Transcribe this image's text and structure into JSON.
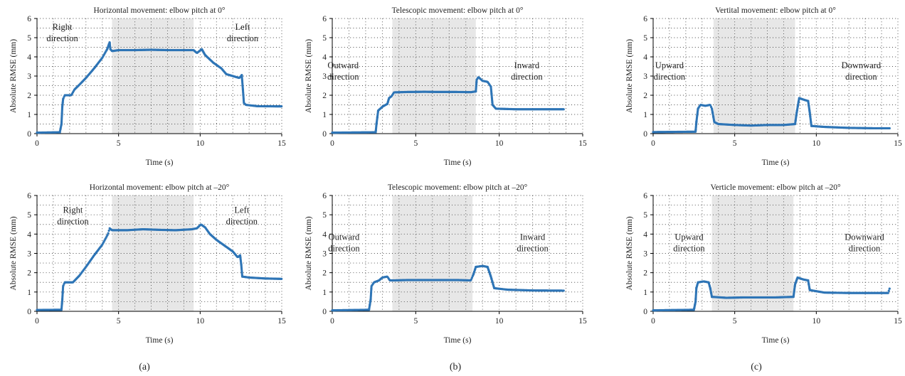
{
  "colors": {
    "series": "#2e75b6",
    "shade": "#e7e7e7",
    "grid": "#4a4a4a",
    "axis": "#000000"
  },
  "sublabels": [
    "(a)",
    "(b)",
    "(c)"
  ],
  "chart_data": [
    {
      "type": "scatter",
      "title": "Horizontal movement: elbow pitch at 0°",
      "xlabel": "Time (s)",
      "ylabel": "Absolute RMSE (mm)",
      "xlim": [
        0,
        15
      ],
      "ylim": [
        0,
        6
      ],
      "xticks": [
        0,
        5,
        10,
        15
      ],
      "yticks": [
        0,
        1,
        2,
        3,
        4,
        5,
        6
      ],
      "grid": true,
      "shaded_interval": [
        4.6,
        9.6
      ],
      "annotations": [
        {
          "lines": [
            "Right",
            "direction"
          ],
          "x": 1.55,
          "y": 5.4
        },
        {
          "lines": [
            "Left",
            "direction"
          ],
          "x": 12.6,
          "y": 5.4
        }
      ],
      "series": [
        {
          "points": [
            [
              0,
              0.05
            ],
            [
              1.4,
              0.07
            ],
            [
              1.5,
              0.5
            ],
            [
              1.55,
              1.4
            ],
            [
              1.6,
              1.8
            ],
            [
              1.7,
              2.0
            ],
            [
              2.1,
              2.0
            ],
            [
              2.3,
              2.3
            ],
            [
              2.6,
              2.55
            ],
            [
              3.0,
              2.9
            ],
            [
              3.5,
              3.4
            ],
            [
              4.0,
              3.95
            ],
            [
              4.3,
              4.4
            ],
            [
              4.45,
              4.75
            ],
            [
              4.5,
              4.4
            ],
            [
              4.6,
              4.3
            ],
            [
              5.0,
              4.35
            ],
            [
              6.0,
              4.35
            ],
            [
              7.0,
              4.37
            ],
            [
              8.0,
              4.35
            ],
            [
              9.0,
              4.35
            ],
            [
              9.6,
              4.35
            ],
            [
              9.8,
              4.2
            ],
            [
              10.1,
              4.4
            ],
            [
              10.3,
              4.1
            ],
            [
              10.8,
              3.7
            ],
            [
              11.3,
              3.4
            ],
            [
              11.6,
              3.1
            ],
            [
              12.0,
              3.0
            ],
            [
              12.4,
              2.9
            ],
            [
              12.55,
              3.05
            ],
            [
              12.62,
              2.3
            ],
            [
              12.68,
              1.6
            ],
            [
              12.8,
              1.5
            ],
            [
              13.5,
              1.43
            ],
            [
              15,
              1.42
            ]
          ]
        }
      ]
    },
    {
      "type": "scatter",
      "title": "Telescopic movement: elbow pitch at 0°",
      "xlabel": "Time (s)",
      "ylabel": "Absolute RMSE (mm)",
      "xlim": [
        0,
        15
      ],
      "ylim": [
        0,
        6
      ],
      "xticks": [
        0,
        5,
        10,
        15
      ],
      "yticks": [
        0,
        1,
        2,
        3,
        4,
        5,
        6
      ],
      "grid": true,
      "shaded_interval": [
        3.6,
        8.6
      ],
      "annotations": [
        {
          "lines": [
            "Outward",
            "direction"
          ],
          "x": 0.65,
          "y": 3.4
        },
        {
          "lines": [
            "Inward",
            "direction"
          ],
          "x": 11.65,
          "y": 3.4
        }
      ],
      "series": [
        {
          "points": [
            [
              0,
              0.05
            ],
            [
              2.6,
              0.07
            ],
            [
              2.65,
              0.5
            ],
            [
              2.75,
              1.2
            ],
            [
              3.0,
              1.4
            ],
            [
              3.3,
              1.55
            ],
            [
              3.4,
              1.85
            ],
            [
              3.55,
              1.95
            ],
            [
              3.7,
              2.15
            ],
            [
              4.5,
              2.17
            ],
            [
              5.5,
              2.18
            ],
            [
              6.5,
              2.17
            ],
            [
              7.5,
              2.17
            ],
            [
              8.3,
              2.16
            ],
            [
              8.6,
              2.2
            ],
            [
              8.65,
              2.8
            ],
            [
              8.75,
              2.95
            ],
            [
              9.0,
              2.75
            ],
            [
              9.3,
              2.7
            ],
            [
              9.5,
              2.45
            ],
            [
              9.6,
              1.5
            ],
            [
              9.8,
              1.3
            ],
            [
              11,
              1.27
            ],
            [
              12.5,
              1.27
            ],
            [
              13.9,
              1.27
            ]
          ]
        }
      ]
    },
    {
      "type": "scatter",
      "title": "Vertital movement: elbow pitch at 0°",
      "xlabel": "Time (s)",
      "ylabel": "Absolute RMSE (mm)",
      "xlim": [
        0,
        15
      ],
      "ylim": [
        0,
        6
      ],
      "xticks": [
        0,
        5,
        10,
        15
      ],
      "yticks": [
        0,
        1,
        2,
        3,
        4,
        5,
        6
      ],
      "grid": true,
      "shaded_interval": [
        3.7,
        8.7
      ],
      "annotations": [
        {
          "lines": [
            "Upward",
            "direction"
          ],
          "x": 1.0,
          "y": 3.4
        },
        {
          "lines": [
            "Downward",
            "direction"
          ],
          "x": 12.75,
          "y": 3.4
        }
      ],
      "series": [
        {
          "points": [
            [
              0,
              0.08
            ],
            [
              2.6,
              0.1
            ],
            [
              2.65,
              0.6
            ],
            [
              2.75,
              1.3
            ],
            [
              2.9,
              1.5
            ],
            [
              3.2,
              1.45
            ],
            [
              3.5,
              1.5
            ],
            [
              3.6,
              1.3
            ],
            [
              3.75,
              0.6
            ],
            [
              4.0,
              0.5
            ],
            [
              5,
              0.45
            ],
            [
              6,
              0.42
            ],
            [
              7,
              0.45
            ],
            [
              8,
              0.45
            ],
            [
              8.7,
              0.5
            ],
            [
              8.8,
              1.1
            ],
            [
              8.95,
              1.85
            ],
            [
              9.3,
              1.75
            ],
            [
              9.5,
              1.7
            ],
            [
              9.6,
              1.1
            ],
            [
              9.7,
              0.4
            ],
            [
              10.5,
              0.35
            ],
            [
              12,
              0.3
            ],
            [
              13.5,
              0.28
            ],
            [
              14.5,
              0.28
            ]
          ]
        }
      ]
    },
    {
      "type": "scatter",
      "title": "Horizontal movement: elbow pitch at –20°",
      "xlabel": "Time (s)",
      "ylabel": "Absolute RMSE (mm)",
      "xlim": [
        0,
        15
      ],
      "ylim": [
        0,
        6
      ],
      "xticks": [
        0,
        5,
        10,
        15
      ],
      "yticks": [
        0,
        1,
        2,
        3,
        4,
        5,
        6
      ],
      "grid": true,
      "shaded_interval": [
        4.6,
        9.6
      ],
      "annotations": [
        {
          "lines": [
            "Right",
            "direction"
          ],
          "x": 2.2,
          "y": 5.1
        },
        {
          "lines": [
            "Left",
            "direction"
          ],
          "x": 12.55,
          "y": 5.1
        }
      ],
      "series": [
        {
          "points": [
            [
              0,
              0.07
            ],
            [
              1.5,
              0.08
            ],
            [
              1.55,
              0.6
            ],
            [
              1.6,
              1.3
            ],
            [
              1.7,
              1.5
            ],
            [
              2.2,
              1.5
            ],
            [
              2.6,
              1.85
            ],
            [
              3.0,
              2.3
            ],
            [
              3.5,
              2.9
            ],
            [
              4.0,
              3.45
            ],
            [
              4.35,
              4.0
            ],
            [
              4.45,
              4.3
            ],
            [
              4.6,
              4.2
            ],
            [
              5.5,
              4.2
            ],
            [
              6.5,
              4.25
            ],
            [
              7.5,
              4.22
            ],
            [
              8.5,
              4.2
            ],
            [
              9.5,
              4.25
            ],
            [
              9.8,
              4.3
            ],
            [
              10.05,
              4.5
            ],
            [
              10.3,
              4.35
            ],
            [
              10.6,
              4.0
            ],
            [
              11,
              3.7
            ],
            [
              11.5,
              3.4
            ],
            [
              12.0,
              3.1
            ],
            [
              12.3,
              2.8
            ],
            [
              12.45,
              2.9
            ],
            [
              12.52,
              2.4
            ],
            [
              12.58,
              1.8
            ],
            [
              13,
              1.75
            ],
            [
              14,
              1.7
            ],
            [
              15,
              1.68
            ]
          ]
        }
      ]
    },
    {
      "type": "scatter",
      "title": "Telescopic movement: elbow pitch at –20°",
      "xlabel": "Time (s)",
      "ylabel": "Absolute RMSE (mm)",
      "xlim": [
        0,
        15
      ],
      "ylim": [
        0,
        6
      ],
      "xticks": [
        0,
        5,
        10,
        15
      ],
      "yticks": [
        0,
        1,
        2,
        3,
        4,
        5,
        6
      ],
      "grid": true,
      "shaded_interval": [
        3.6,
        8.4
      ],
      "annotations": [
        {
          "lines": [
            "Outward",
            "direction"
          ],
          "x": 0.7,
          "y": 3.7
        },
        {
          "lines": [
            "Inward",
            "direction"
          ],
          "x": 12.0,
          "y": 3.7
        }
      ],
      "series": [
        {
          "points": [
            [
              0,
              0.05
            ],
            [
              2.2,
              0.08
            ],
            [
              2.3,
              0.6
            ],
            [
              2.35,
              1.3
            ],
            [
              2.5,
              1.5
            ],
            [
              2.8,
              1.6
            ],
            [
              3.0,
              1.75
            ],
            [
              3.3,
              1.8
            ],
            [
              3.45,
              1.6
            ],
            [
              3.6,
              1.6
            ],
            [
              4.5,
              1.62
            ],
            [
              5.5,
              1.62
            ],
            [
              6.5,
              1.62
            ],
            [
              7.5,
              1.62
            ],
            [
              8.3,
              1.6
            ],
            [
              8.45,
              1.9
            ],
            [
              8.6,
              2.3
            ],
            [
              9.0,
              2.35
            ],
            [
              9.3,
              2.3
            ],
            [
              9.5,
              1.8
            ],
            [
              9.7,
              1.2
            ],
            [
              10.5,
              1.12
            ],
            [
              12,
              1.08
            ],
            [
              13.9,
              1.07
            ]
          ]
        }
      ]
    },
    {
      "type": "scatter",
      "title": "Verticle movement: elbow pitch at –20°",
      "xlabel": "Time (s)",
      "ylabel": "Absolute RMSE (mm)",
      "xlim": [
        0,
        15
      ],
      "ylim": [
        0,
        6
      ],
      "xticks": [
        0,
        5,
        10,
        15
      ],
      "yticks": [
        0,
        1,
        2,
        3,
        4,
        5,
        6
      ],
      "grid": true,
      "shaded_interval": [
        3.6,
        8.6
      ],
      "annotations": [
        {
          "lines": [
            "Upward",
            "direction"
          ],
          "x": 2.2,
          "y": 3.7
        },
        {
          "lines": [
            "Downward",
            "direction"
          ],
          "x": 12.95,
          "y": 3.7
        }
      ],
      "series": [
        {
          "points": [
            [
              0,
              0.05
            ],
            [
              2.5,
              0.08
            ],
            [
              2.6,
              0.5
            ],
            [
              2.65,
              1.2
            ],
            [
              2.75,
              1.5
            ],
            [
              3.1,
              1.55
            ],
            [
              3.4,
              1.5
            ],
            [
              3.5,
              1.2
            ],
            [
              3.6,
              0.75
            ],
            [
              4.5,
              0.7
            ],
            [
              5.5,
              0.72
            ],
            [
              6.5,
              0.72
            ],
            [
              7.5,
              0.72
            ],
            [
              8.6,
              0.75
            ],
            [
              8.7,
              1.4
            ],
            [
              8.85,
              1.75
            ],
            [
              9.2,
              1.65
            ],
            [
              9.5,
              1.6
            ],
            [
              9.6,
              1.1
            ],
            [
              10.5,
              0.97
            ],
            [
              12,
              0.95
            ],
            [
              13.5,
              0.95
            ],
            [
              14.4,
              0.95
            ],
            [
              14.5,
              1.2
            ]
          ]
        }
      ]
    }
  ]
}
